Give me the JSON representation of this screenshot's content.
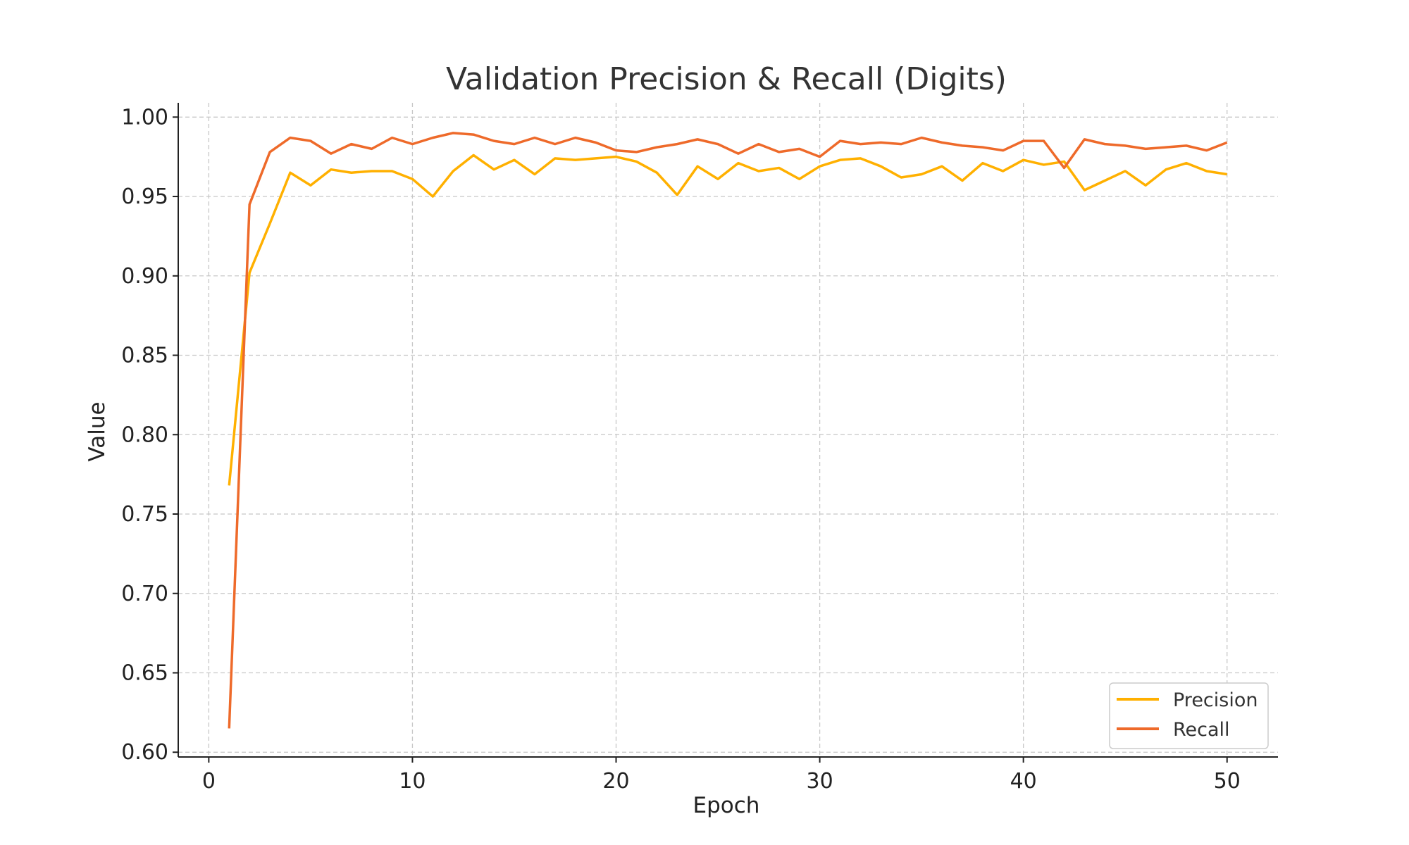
{
  "chart_data": {
    "type": "line",
    "title": "Validation Precision & Recall (Digits)",
    "xlabel": "Epoch",
    "ylabel": "Value",
    "xlim": [
      -1.5,
      52.5
    ],
    "ylim": [
      0.597,
      1.009
    ],
    "xticks": [
      "0",
      "10",
      "20",
      "30",
      "40",
      "50"
    ],
    "yticks": [
      "0.60",
      "0.65",
      "0.70",
      "0.75",
      "0.80",
      "0.85",
      "0.90",
      "0.95",
      "1.00"
    ],
    "grid": true,
    "legend_position": "lower-right",
    "x": [
      1,
      2,
      3,
      4,
      5,
      6,
      7,
      8,
      9,
      10,
      11,
      12,
      13,
      14,
      15,
      16,
      17,
      18,
      19,
      20,
      21,
      22,
      23,
      24,
      25,
      26,
      27,
      28,
      29,
      30,
      31,
      32,
      33,
      34,
      35,
      36,
      37,
      38,
      39,
      40,
      41,
      42,
      43,
      44,
      45,
      46,
      47,
      48,
      49,
      50
    ],
    "series": [
      {
        "name": "Precision",
        "color": "#FFB000",
        "values": [
          0.768,
          0.902,
          0.933,
          0.965,
          0.957,
          0.967,
          0.965,
          0.966,
          0.966,
          0.961,
          0.95,
          0.966,
          0.976,
          0.967,
          0.973,
          0.964,
          0.974,
          0.973,
          0.974,
          0.975,
          0.972,
          0.965,
          0.951,
          0.969,
          0.961,
          0.971,
          0.966,
          0.968,
          0.961,
          0.969,
          0.973,
          0.974,
          0.969,
          0.962,
          0.964,
          0.969,
          0.96,
          0.971,
          0.966,
          0.973,
          0.97,
          0.972,
          0.954,
          0.96,
          0.966,
          0.957,
          0.967,
          0.971,
          0.966,
          0.964
        ]
      },
      {
        "name": "Recall",
        "color": "#EE6A2A",
        "values": [
          0.615,
          0.945,
          0.978,
          0.987,
          0.985,
          0.977,
          0.983,
          0.98,
          0.987,
          0.983,
          0.987,
          0.99,
          0.989,
          0.985,
          0.983,
          0.987,
          0.983,
          0.987,
          0.984,
          0.979,
          0.978,
          0.981,
          0.983,
          0.986,
          0.983,
          0.977,
          0.983,
          0.978,
          0.98,
          0.975,
          0.985,
          0.983,
          0.984,
          0.983,
          0.987,
          0.984,
          0.982,
          0.981,
          0.979,
          0.985,
          0.985,
          0.968,
          0.986,
          0.983,
          0.982,
          0.98,
          0.981,
          0.982,
          0.979,
          0.984
        ]
      }
    ]
  }
}
